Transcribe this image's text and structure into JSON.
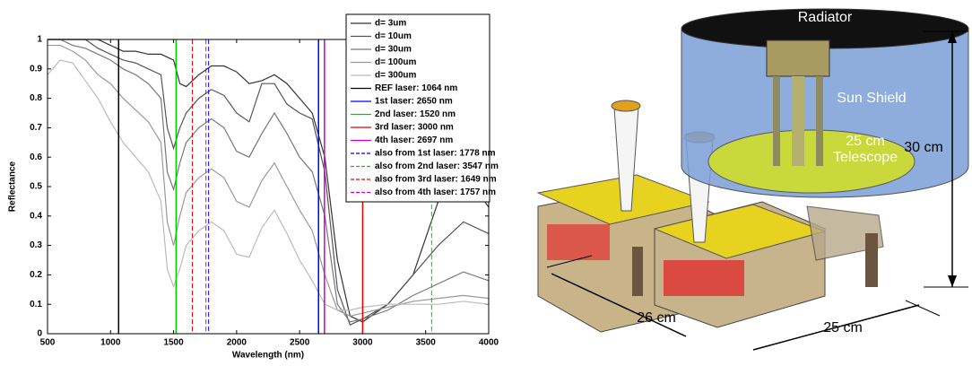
{
  "chart_data": {
    "type": "line",
    "xlabel": "Wavelength (nm)",
    "ylabel": "Reflectance",
    "x": [
      500,
      600,
      700,
      800,
      900,
      1000,
      1100,
      1200,
      1300,
      1400,
      1450,
      1500,
      1550,
      1600,
      1700,
      1800,
      1900,
      2000,
      2100,
      2200,
      2300,
      2400,
      2500,
      2600,
      2700,
      2800,
      2900,
      3000,
      3200,
      3400,
      3600,
      3800,
      4000
    ],
    "series": [
      {
        "name": "d=  3um",
        "color": "#333333",
        "values": [
          1,
          1,
          1,
          1,
          1,
          0.98,
          0.96,
          0.96,
          0.95,
          0.95,
          0.94,
          0.93,
          0.85,
          0.84,
          0.88,
          0.91,
          0.91,
          0.89,
          0.85,
          0.86,
          0.88,
          0.85,
          0.8,
          0.75,
          0.6,
          0.25,
          0.06,
          0.04,
          0.1,
          0.2,
          0.45,
          0.55,
          0.43
        ]
      },
      {
        "name": "d=  10um",
        "color": "#555555",
        "values": [
          1,
          1,
          1,
          1,
          0.97,
          0.95,
          0.93,
          0.92,
          0.9,
          0.88,
          0.7,
          0.63,
          0.7,
          0.75,
          0.8,
          0.83,
          0.81,
          0.75,
          0.72,
          0.85,
          0.85,
          0.78,
          0.75,
          0.73,
          0.55,
          0.15,
          0.03,
          0.05,
          0.1,
          0.2,
          0.3,
          0.38,
          0.34
        ]
      },
      {
        "name": "d=  30um",
        "color": "#777777",
        "values": [
          1,
          1,
          0.98,
          0.97,
          0.95,
          0.93,
          0.9,
          0.88,
          0.85,
          0.8,
          0.55,
          0.49,
          0.58,
          0.65,
          0.7,
          0.73,
          0.7,
          0.62,
          0.6,
          0.68,
          0.75,
          0.68,
          0.6,
          0.55,
          0.4,
          0.1,
          0.04,
          0.05,
          0.08,
          0.13,
          0.17,
          0.21,
          0.18
        ]
      },
      {
        "name": "d= 100um",
        "color": "#999999",
        "values": [
          0.98,
          0.98,
          0.96,
          0.93,
          0.88,
          0.85,
          0.8,
          0.76,
          0.72,
          0.65,
          0.38,
          0.3,
          0.4,
          0.48,
          0.53,
          0.56,
          0.53,
          0.45,
          0.43,
          0.52,
          0.58,
          0.5,
          0.42,
          0.35,
          0.2,
          0.08,
          0.06,
          0.07,
          0.09,
          0.11,
          0.12,
          0.13,
          0.12
        ]
      },
      {
        "name": "d= 300um",
        "color": "#bbbbbb",
        "values": [
          0.88,
          0.93,
          0.92,
          0.86,
          0.8,
          0.72,
          0.65,
          0.6,
          0.55,
          0.45,
          0.22,
          0.16,
          0.22,
          0.3,
          0.35,
          0.38,
          0.35,
          0.27,
          0.26,
          0.36,
          0.42,
          0.34,
          0.25,
          0.18,
          0.1,
          0.08,
          0.08,
          0.09,
          0.1,
          0.1,
          0.1,
          0.11,
          0.1
        ]
      }
    ],
    "vlines": [
      {
        "name": "REF laser: 1064 nm",
        "x": 1064,
        "color": "#000000",
        "dashed": false
      },
      {
        "name": "1st laser: 2650 nm",
        "x": 2650,
        "color": "#0000ff",
        "dashed": false
      },
      {
        "name": "2nd laser: 1520 nm",
        "x": 1520,
        "color": "#00cc00",
        "dashed": false
      },
      {
        "name": "3rd laser: 3000 nm",
        "x": 3000,
        "color": "#ee0000",
        "dashed": false
      },
      {
        "name": "4th laser: 2697 nm",
        "x": 2697,
        "color": "#cc00cc",
        "dashed": false
      },
      {
        "name": "also from 1st laser: 1778 nm",
        "x": 1778,
        "color": "#0000ff",
        "dashed": true
      },
      {
        "name": "also from 2nd laser: 3547 nm",
        "x": 3547,
        "color": "#00cc00",
        "dashed": true
      },
      {
        "name": "also from 3rd laser: 1649 nm",
        "x": 1649,
        "color": "#ee0000",
        "dashed": true
      },
      {
        "name": "also from 4th laser: 1757 nm",
        "x": 1757,
        "color": "#cc00cc",
        "dashed": true
      }
    ],
    "xlim": [
      500,
      4000
    ],
    "xticks": [
      500,
      1000,
      1500,
      2000,
      2500,
      3000,
      3500,
      4000
    ],
    "ylim": [
      0,
      1
    ],
    "yticks": [
      0,
      0.1,
      0.2,
      0.3,
      0.4,
      0.5,
      0.6,
      0.7,
      0.8,
      0.9,
      1
    ]
  },
  "illustration": {
    "labels": [
      "Radiator",
      "Sun Shield",
      "25 cm",
      "Telescope",
      "30 cm",
      "26 cm",
      "25 cm"
    ]
  }
}
